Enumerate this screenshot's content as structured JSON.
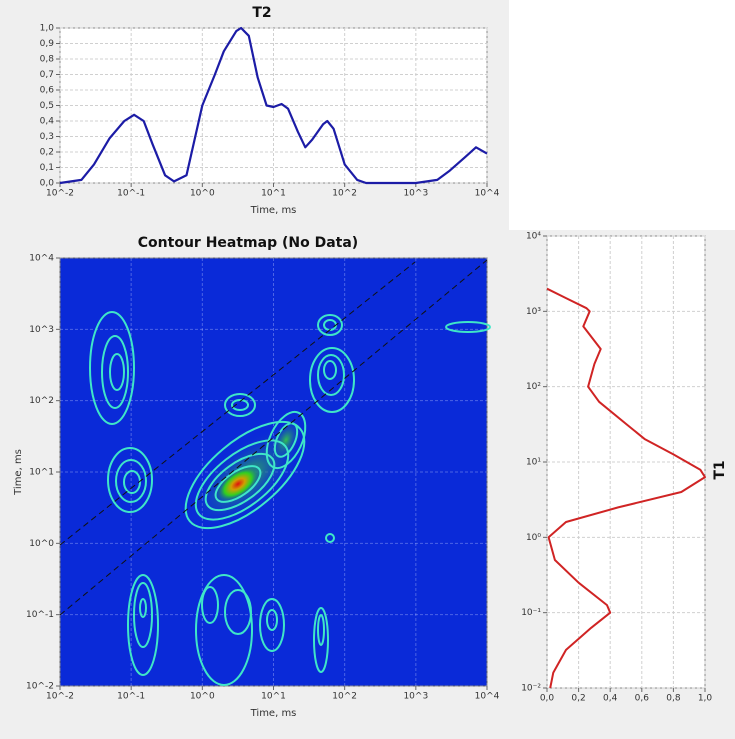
{
  "chart_data": [
    {
      "type": "line",
      "title": "T2",
      "xlabel": "Time, ms",
      "log_x": true,
      "grid": true,
      "color": "#1c1ca6",
      "xlim": [
        0.01,
        10000
      ],
      "xticks": [
        {
          "value": 0.01,
          "label": "10^-2"
        },
        {
          "value": 0.1,
          "label": "10^-1"
        },
        {
          "value": 1,
          "label": "10^0"
        },
        {
          "value": 10,
          "label": "10^1"
        },
        {
          "value": 100,
          "label": "10^2"
        },
        {
          "value": 1000,
          "label": "10^3"
        },
        {
          "value": 10000,
          "label": "10^4"
        }
      ],
      "ylim": [
        0,
        1
      ],
      "yticks": [
        {
          "value": 0,
          "label": "0,0"
        },
        {
          "value": 0.1,
          "label": "0,1"
        },
        {
          "value": 0.2,
          "label": "0,2"
        },
        {
          "value": 0.3,
          "label": "0,3"
        },
        {
          "value": 0.4,
          "label": "0,4"
        },
        {
          "value": 0.5,
          "label": "0,5"
        },
        {
          "value": 0.6,
          "label": "0,6"
        },
        {
          "value": 0.7,
          "label": "0,7"
        },
        {
          "value": 0.8,
          "label": "0,8"
        },
        {
          "value": 0.9,
          "label": "0,9"
        },
        {
          "value": 1,
          "label": "1,0"
        }
      ],
      "x": [
        0.01,
        0.02,
        0.03,
        0.05,
        0.08,
        0.11,
        0.15,
        0.2,
        0.3,
        0.4,
        0.6,
        1,
        1.5,
        2,
        3,
        3.5,
        4.5,
        6,
        8,
        10,
        13,
        16,
        22,
        28,
        35,
        50,
        57,
        70,
        100,
        150,
        200,
        1000,
        2000,
        3000,
        5000,
        7000,
        10000
      ],
      "values": [
        0.0,
        0.02,
        0.12,
        0.29,
        0.4,
        0.44,
        0.4,
        0.25,
        0.05,
        0.01,
        0.05,
        0.5,
        0.7,
        0.85,
        0.98,
        1.0,
        0.95,
        0.68,
        0.5,
        0.49,
        0.51,
        0.48,
        0.33,
        0.23,
        0.28,
        0.38,
        0.4,
        0.35,
        0.12,
        0.02,
        0.0,
        0.0,
        0.02,
        0.08,
        0.17,
        0.23,
        0.19
      ]
    },
    {
      "type": "heatmap",
      "title": "Contour Heatmap (No Data)",
      "xlabel": "Time, ms",
      "ylabel": "Time, ms",
      "log_x": true,
      "log_y": true,
      "grid": true,
      "xlim": [
        0.01,
        10000
      ],
      "xticks": [
        {
          "value": 0.01,
          "label": "10^-2"
        },
        {
          "value": 0.1,
          "label": "10^-1"
        },
        {
          "value": 1,
          "label": "10^0"
        },
        {
          "value": 10,
          "label": "10^1"
        },
        {
          "value": 100,
          "label": "10^2"
        },
        {
          "value": 1000,
          "label": "10^3"
        },
        {
          "value": 10000,
          "label": "10^4"
        }
      ],
      "ylim": [
        0.01,
        10000
      ],
      "yticks": [
        {
          "value": 0.01,
          "label": "10^-2"
        },
        {
          "value": 0.1,
          "label": "10^-1"
        },
        {
          "value": 1,
          "label": "10^0"
        },
        {
          "value": 10,
          "label": "10^1"
        },
        {
          "value": 100,
          "label": "10^2"
        },
        {
          "value": 1000,
          "label": "10^3"
        },
        {
          "value": 10000,
          "label": "10^4"
        }
      ]
    },
    {
      "type": "vline",
      "title": "T1",
      "log_y": true,
      "grid": true,
      "color": "#d02424",
      "xlim": [
        0,
        1
      ],
      "xticks": [
        {
          "value": 0,
          "label": "0,0"
        },
        {
          "value": 0.2,
          "label": "0,2"
        },
        {
          "value": 0.4,
          "label": "0,4"
        },
        {
          "value": 0.6,
          "label": "0,6"
        },
        {
          "value": 0.8,
          "label": "0,8"
        },
        {
          "value": 1,
          "label": "1,0"
        }
      ],
      "ylim": [
        0.01,
        10000
      ],
      "yticks": [
        {
          "value": 0.01,
          "label": "10⁻²"
        },
        {
          "value": 0.1,
          "label": "10⁻¹"
        },
        {
          "value": 1,
          "label": "10⁰"
        },
        {
          "value": 10,
          "label": "10¹"
        },
        {
          "value": 100,
          "label": "10²"
        },
        {
          "value": 1000,
          "label": "10³"
        },
        {
          "value": 10000,
          "label": "10⁴"
        }
      ],
      "y": [
        2000,
        1500,
        1100,
        1000,
        631,
        316,
        200,
        100,
        63,
        32,
        20,
        12.6,
        7.9,
        6.3,
        4,
        2.5,
        1.6,
        1,
        0.5,
        0.25,
        0.126,
        0.1,
        0.063,
        0.032,
        0.016,
        0.01
      ],
      "values": [
        0.0,
        0.12,
        0.25,
        0.27,
        0.23,
        0.34,
        0.3,
        0.26,
        0.33,
        0.5,
        0.62,
        0.8,
        0.97,
        1.0,
        0.85,
        0.45,
        0.12,
        0.01,
        0.05,
        0.2,
        0.38,
        0.4,
        0.28,
        0.12,
        0.04,
        0.02
      ]
    }
  ]
}
